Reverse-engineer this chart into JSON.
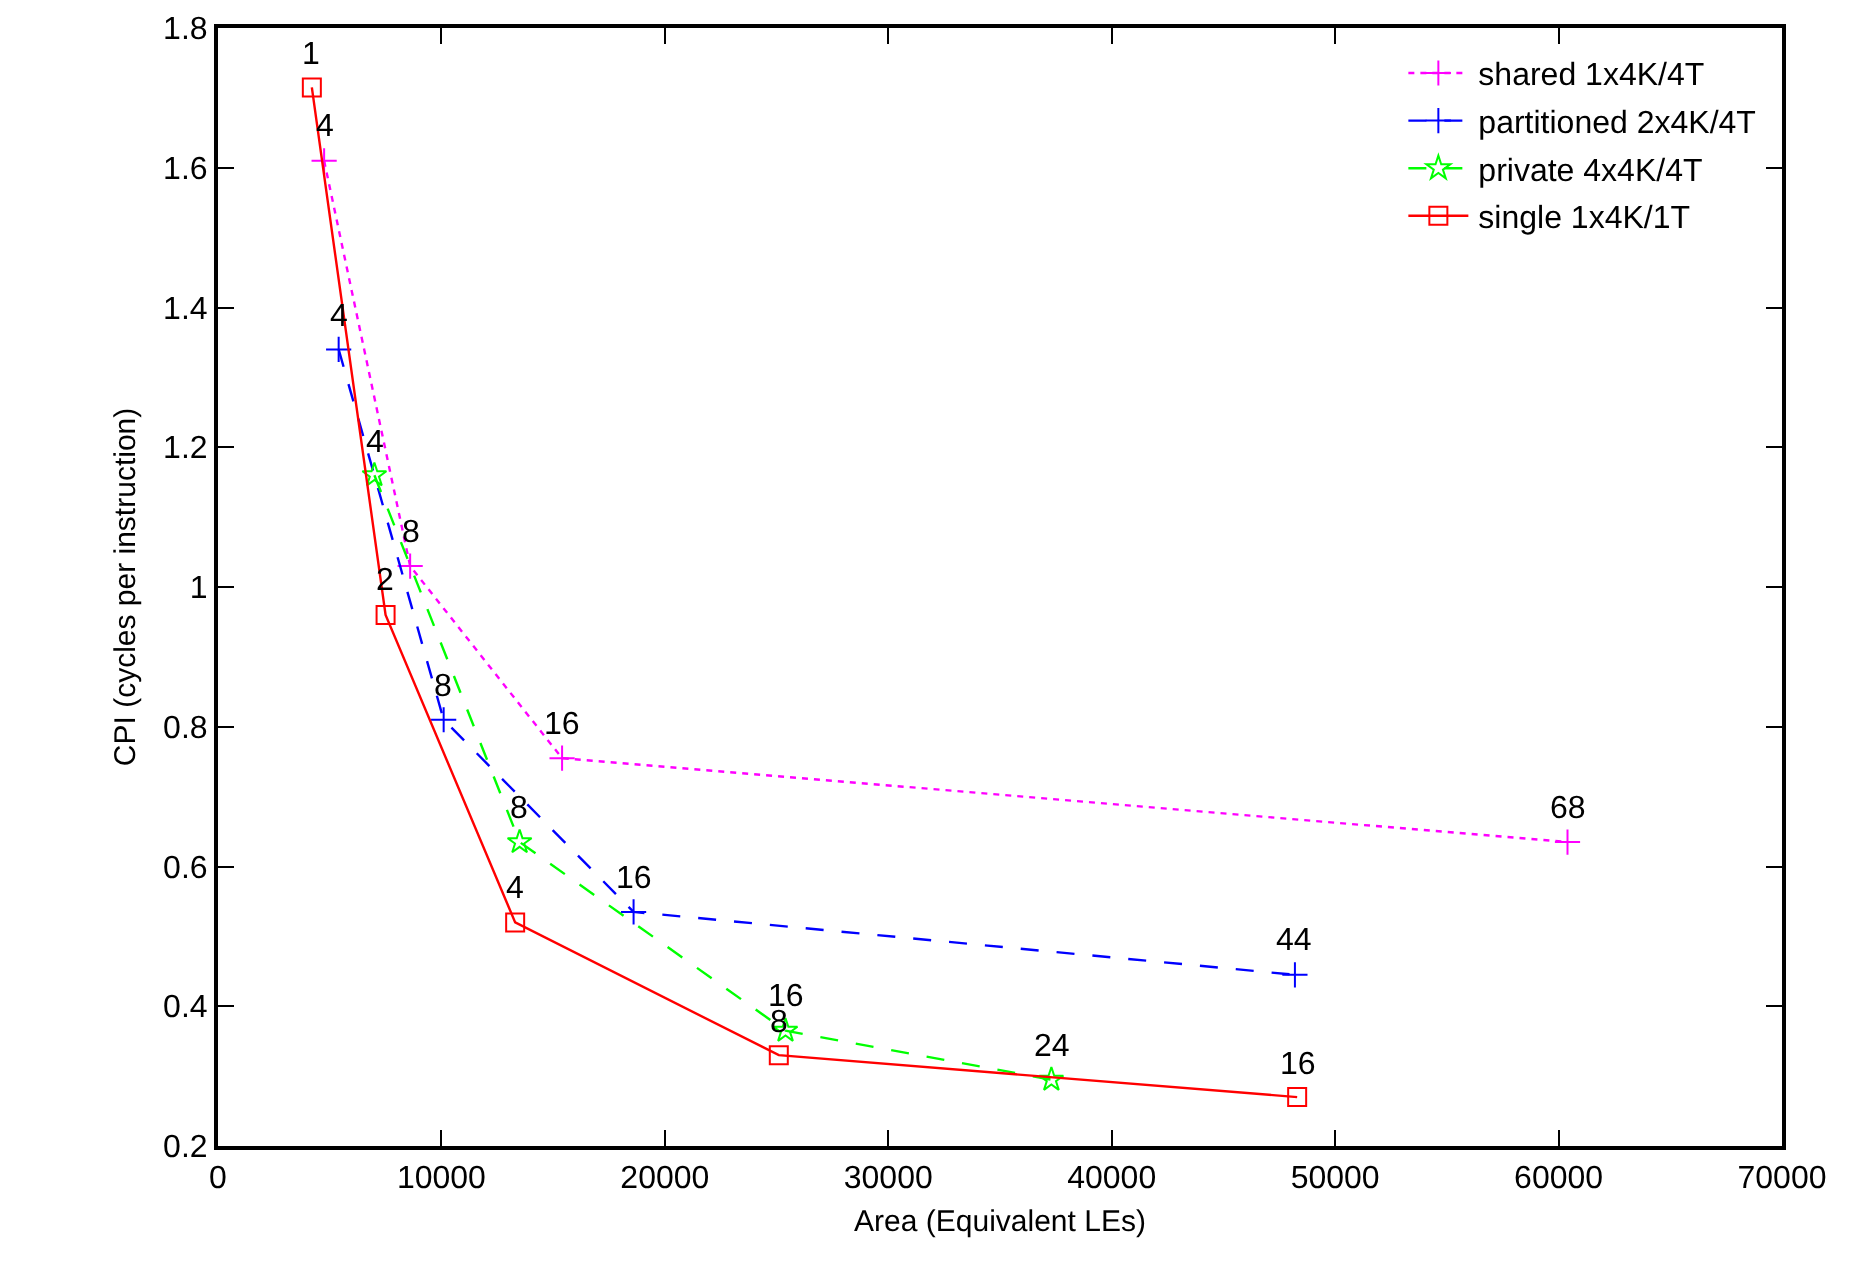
{
  "chart_data": {
    "type": "line",
    "xlabel": "Area (Equivalent LEs)",
    "ylabel": "CPI (cycles per instruction)",
    "xlim": [
      0,
      70000
    ],
    "xticks": [
      0,
      10000,
      20000,
      30000,
      40000,
      50000,
      60000,
      70000
    ],
    "ylim": [
      0.2,
      1.8
    ],
    "yticks": [
      0.2,
      0.4,
      0.6,
      0.8,
      1,
      1.2,
      1.4,
      1.6,
      1.8
    ],
    "grid": false,
    "legend": "top right",
    "series": [
      {
        "name": "shared 1x4K/4T",
        "color": "#ff00ff",
        "line_style": "dotted",
        "marker": "cross",
        "x": [
          4750,
          8600,
          15400,
          60400
        ],
        "values": [
          1.61,
          1.03,
          0.755,
          0.635
        ]
      },
      {
        "name": "partitioned 2x4K/4T",
        "color": "#0000ff",
        "line_style": "dashed",
        "marker": "cross",
        "x": [
          5400,
          10100,
          18600,
          48200
        ],
        "values": [
          1.34,
          0.81,
          0.535,
          0.445
        ]
      },
      {
        "name": "private 4x4K/4T",
        "color": "#00ff00",
        "line_style": "dashed",
        "marker": "star",
        "x": [
          7000,
          13500,
          25400,
          37300
        ],
        "values": [
          1.16,
          0.635,
          0.365,
          0.295
        ]
      },
      {
        "name": "single 1x4K/1T",
        "color": "#ff0000",
        "line_style": "solid",
        "marker": "square",
        "x": [
          4200,
          7500,
          13300,
          25100,
          48300
        ],
        "values": [
          1.715,
          0.96,
          0.52,
          0.33,
          0.27
        ]
      }
    ],
    "annotations": [
      {
        "text": "4",
        "x": 4750,
        "y": 1.61
      },
      {
        "text": "8",
        "x": 8600,
        "y": 1.03
      },
      {
        "text": "16",
        "x": 15400,
        "y": 0.755
      },
      {
        "text": "68",
        "x": 60400,
        "y": 0.635
      },
      {
        "text": "4",
        "x": 5400,
        "y": 1.34
      },
      {
        "text": "8",
        "x": 10100,
        "y": 0.81
      },
      {
        "text": "16",
        "x": 18600,
        "y": 0.535
      },
      {
        "text": "44",
        "x": 48200,
        "y": 0.445
      },
      {
        "text": "4",
        "x": 7000,
        "y": 1.16
      },
      {
        "text": "8",
        "x": 13500,
        "y": 0.635
      },
      {
        "text": "16",
        "x": 25400,
        "y": 0.365
      },
      {
        "text": "24",
        "x": 37300,
        "y": 0.295
      },
      {
        "text": "1",
        "x": 4200,
        "y": 1.715
      },
      {
        "text": "2",
        "x": 7500,
        "y": 0.96
      },
      {
        "text": "4",
        "x": 13300,
        "y": 0.52
      },
      {
        "text": "8",
        "x": 25100,
        "y": 0.33
      },
      {
        "text": "16",
        "x": 48300,
        "y": 0.27
      }
    ]
  }
}
